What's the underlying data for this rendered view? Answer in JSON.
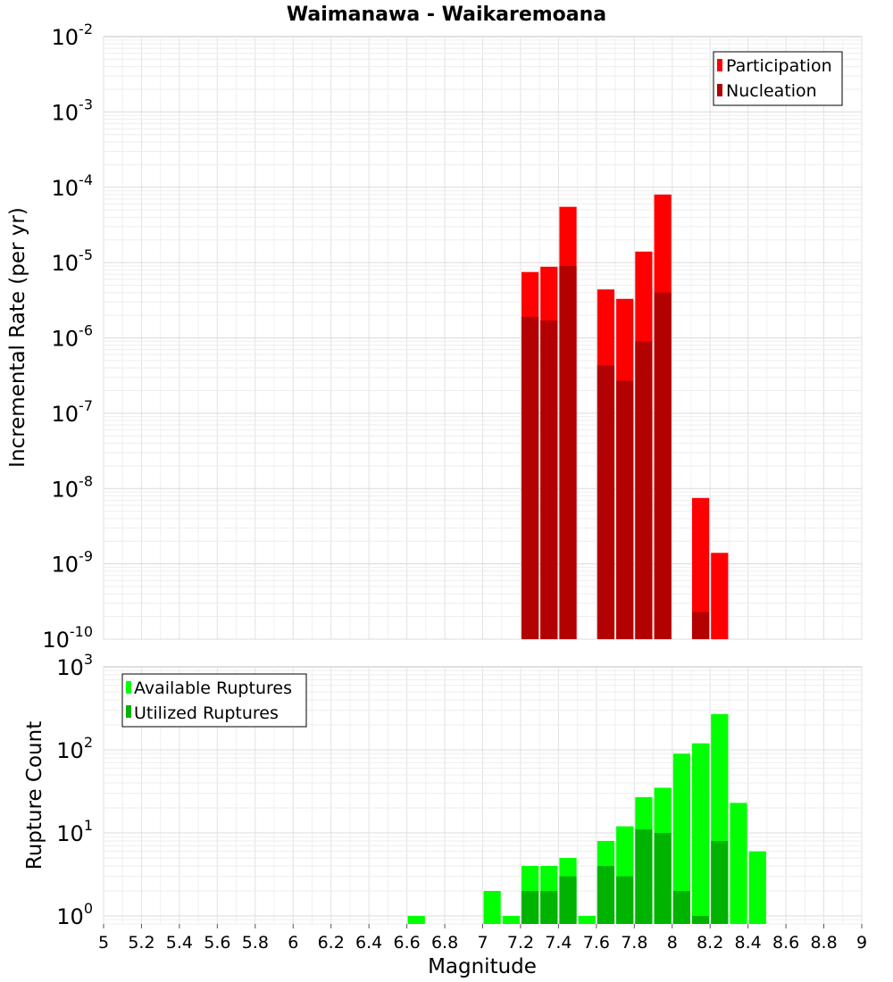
{
  "chart_data": [
    {
      "type": "bar",
      "title": "Waimanawa - Waikaremoana",
      "xlabel": "",
      "ylabel": "Incremental Rate (per yr)",
      "yscale": "log",
      "xlim": [
        5,
        9
      ],
      "ylim": [
        1e-10,
        0.01
      ],
      "y_ticks": [
        {
          "base": "10",
          "exp": "-10"
        },
        {
          "base": "10",
          "exp": "-9"
        },
        {
          "base": "10",
          "exp": "-8"
        },
        {
          "base": "10",
          "exp": "-7"
        },
        {
          "base": "10",
          "exp": "-6"
        },
        {
          "base": "10",
          "exp": "-5"
        },
        {
          "base": "10",
          "exp": "-4"
        },
        {
          "base": "10",
          "exp": "-3"
        },
        {
          "base": "10",
          "exp": "-2"
        }
      ],
      "grid": true,
      "legend": "top-right",
      "bar_width": 0.1,
      "series": [
        {
          "name": "Participation",
          "color": "#ff0000",
          "x": [
            7.25,
            7.35,
            7.45,
            7.65,
            7.75,
            7.85,
            7.95,
            8.15,
            8.25
          ],
          "values": [
            7.5e-06,
            8.8e-06,
            5.5e-05,
            4.4e-06,
            3.3e-06,
            1.4e-05,
            8e-05,
            7.5e-09,
            1.4e-09
          ]
        },
        {
          "name": "Nucleation",
          "color": "#b30000",
          "x": [
            7.25,
            7.35,
            7.45,
            7.65,
            7.75,
            7.85,
            7.95,
            8.15
          ],
          "values": [
            1.9e-06,
            1.7e-06,
            9e-06,
            4.3e-07,
            2.7e-07,
            9e-07,
            4e-06,
            2.3e-10
          ]
        }
      ]
    },
    {
      "type": "bar",
      "title": "",
      "xlabel": "Magnitude",
      "ylabel": "Rupture Count",
      "yscale": "log",
      "xlim": [
        5,
        9
      ],
      "ylim": [
        0.8,
        1000
      ],
      "x_ticks": [
        "5",
        "5.2",
        "5.4",
        "5.6",
        "5.8",
        "6",
        "6.2",
        "6.4",
        "6.6",
        "6.8",
        "7",
        "7.2",
        "7.4",
        "7.6",
        "7.8",
        "8",
        "8.2",
        "8.4",
        "8.6",
        "8.8",
        "9"
      ],
      "y_ticks": [
        {
          "base": "10",
          "exp": "0"
        },
        {
          "base": "10",
          "exp": "1"
        },
        {
          "base": "10",
          "exp": "2"
        },
        {
          "base": "10",
          "exp": "3"
        }
      ],
      "grid": true,
      "legend": "top-left",
      "bar_width": 0.1,
      "series": [
        {
          "name": "Available Ruptures",
          "color": "#00ff00",
          "x": [
            6.65,
            7.05,
            7.15,
            7.25,
            7.35,
            7.45,
            7.55,
            7.65,
            7.75,
            7.85,
            7.95,
            8.05,
            8.15,
            8.25,
            8.35,
            8.45
          ],
          "values": [
            1,
            2,
            1,
            4,
            4,
            5,
            1,
            8,
            12,
            27,
            35,
            90,
            120,
            270,
            23,
            6
          ]
        },
        {
          "name": "Utilized Ruptures",
          "color": "#00b300",
          "x": [
            7.25,
            7.35,
            7.45,
            7.65,
            7.75,
            7.85,
            7.95,
            8.05,
            8.15,
            8.25
          ],
          "values": [
            2,
            2,
            3,
            4,
            3,
            11,
            10,
            2,
            1,
            8
          ]
        }
      ]
    }
  ]
}
